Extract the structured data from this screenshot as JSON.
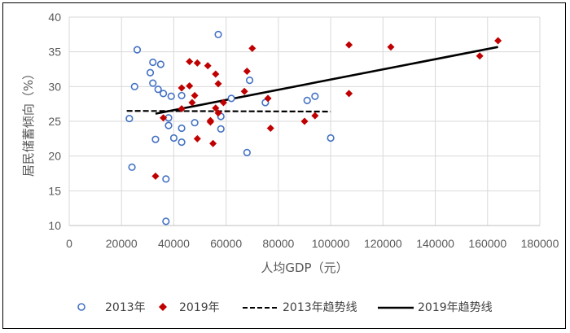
{
  "chart_data": {
    "type": "scatter",
    "xlabel": "人均GDP（元）",
    "ylabel": "居民储蓄倾向（%）",
    "xlim": [
      0,
      180000
    ],
    "ylim": [
      10,
      40
    ],
    "x_ticks": [
      0,
      20000,
      40000,
      60000,
      80000,
      100000,
      120000,
      140000,
      160000,
      180000
    ],
    "y_ticks": [
      10,
      15,
      20,
      25,
      30,
      35,
      40
    ],
    "grid": true,
    "legend_position": "bottom",
    "series": [
      {
        "name": "2013年",
        "marker": "circle-open",
        "color": "#4472C4",
        "points": [
          [
            23000,
            25.4
          ],
          [
            24000,
            18.4
          ],
          [
            25000,
            30.0
          ],
          [
            26000,
            35.3
          ],
          [
            31000,
            32.0
          ],
          [
            32000,
            30.5
          ],
          [
            32000,
            33.5
          ],
          [
            33000,
            22.4
          ],
          [
            34000,
            29.6
          ],
          [
            35000,
            33.2
          ],
          [
            36000,
            29.0
          ],
          [
            37000,
            16.7
          ],
          [
            37000,
            10.6
          ],
          [
            38000,
            25.5
          ],
          [
            38000,
            24.4
          ],
          [
            39000,
            28.6
          ],
          [
            40000,
            22.6
          ],
          [
            43000,
            28.7
          ],
          [
            43000,
            24.0
          ],
          [
            43000,
            22.0
          ],
          [
            48000,
            24.8
          ],
          [
            57000,
            37.5
          ],
          [
            58000,
            23.9
          ],
          [
            58000,
            25.7
          ],
          [
            62000,
            28.3
          ],
          [
            68000,
            20.5
          ],
          [
            69000,
            30.9
          ],
          [
            75000,
            27.7
          ],
          [
            91000,
            28.0
          ],
          [
            94000,
            28.6
          ],
          [
            100000,
            22.6
          ]
        ]
      },
      {
        "name": "2019年",
        "marker": "diamond",
        "color": "#C00000",
        "points": [
          [
            33000,
            17.1
          ],
          [
            36000,
            25.5
          ],
          [
            43000,
            29.8
          ],
          [
            43000,
            26.8
          ],
          [
            46000,
            33.6
          ],
          [
            46000,
            30.1
          ],
          [
            47000,
            27.7
          ],
          [
            48000,
            28.7
          ],
          [
            49000,
            33.4
          ],
          [
            49000,
            22.5
          ],
          [
            53000,
            33.0
          ],
          [
            54000,
            25.1
          ],
          [
            54000,
            24.9
          ],
          [
            55000,
            21.8
          ],
          [
            56000,
            31.8
          ],
          [
            56000,
            26.9
          ],
          [
            57000,
            30.4
          ],
          [
            57000,
            26.2
          ],
          [
            59000,
            27.7
          ],
          [
            67000,
            29.3
          ],
          [
            68000,
            32.2
          ],
          [
            70000,
            35.5
          ],
          [
            76000,
            28.3
          ],
          [
            77000,
            24.0
          ],
          [
            90000,
            25.0
          ],
          [
            94000,
            25.8
          ],
          [
            107000,
            29.0
          ],
          [
            107000,
            36.0
          ],
          [
            123000,
            35.7
          ],
          [
            157000,
            34.4
          ],
          [
            164000,
            36.6
          ]
        ]
      },
      {
        "name": "2013年趋势线",
        "kind": "trendline",
        "style": "dashed",
        "color": "#000000",
        "line": [
          [
            22000,
            26.5
          ],
          [
            100000,
            26.4
          ]
        ]
      },
      {
        "name": "2019年趋势线",
        "kind": "trendline",
        "style": "solid",
        "color": "#000000",
        "line": [
          [
            33000,
            26.1
          ],
          [
            164000,
            35.7
          ]
        ]
      }
    ]
  }
}
